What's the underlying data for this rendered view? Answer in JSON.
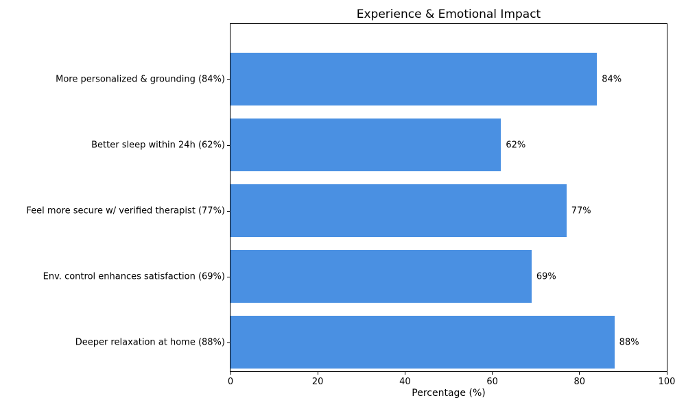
{
  "chart_data": {
    "type": "bar",
    "orientation": "horizontal",
    "title": "Experience & Emotional Impact",
    "xlabel": "Percentage (%)",
    "categories": [
      "More personalized & grounding (84%)",
      "Better sleep within 24h (62%)",
      "Feel more secure w/ verified therapist (77%)",
      "Env. control enhances satisfaction (69%)",
      "Deeper relaxation at home (88%)"
    ],
    "values": [
      84,
      62,
      77,
      69,
      88
    ],
    "value_labels": [
      "84%",
      "62%",
      "77%",
      "69%",
      "88%"
    ],
    "xlim": [
      0,
      100
    ],
    "xticks": [
      0,
      20,
      40,
      60,
      80,
      100
    ],
    "bar_color": "#4a90e2",
    "grid": false,
    "legend": false
  }
}
